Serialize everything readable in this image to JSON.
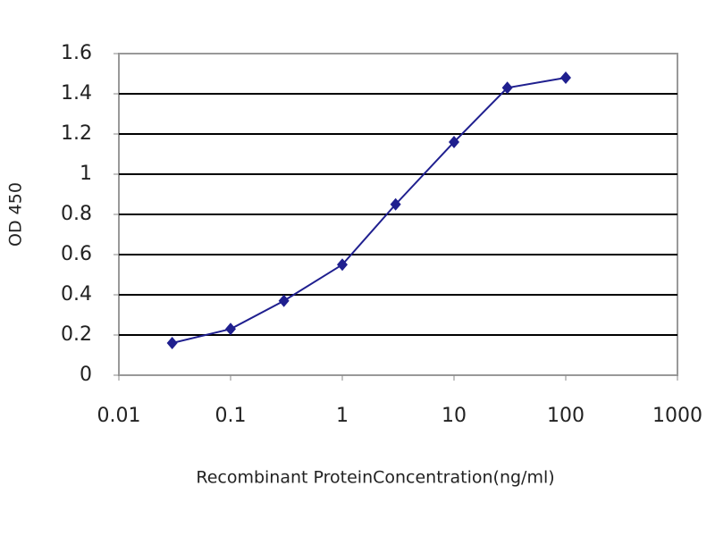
{
  "chart_data": {
    "type": "line",
    "x_label": "Recombinant ProteinConcentration(ng/ml)",
    "y_label": "OD 450",
    "x": [
      0.03,
      0.1,
      0.3,
      1,
      3,
      10,
      30,
      100
    ],
    "series": [
      {
        "name": "OD 450",
        "color": "#1f1f8f",
        "values": [
          0.16,
          0.23,
          0.37,
          0.55,
          0.85,
          1.16,
          1.43,
          1.48
        ]
      }
    ],
    "xscale": "log",
    "xlim": [
      0.01,
      1000
    ],
    "xticks": [
      0.01,
      0.1,
      1,
      10,
      100,
      1000
    ],
    "ylim": [
      0,
      1.6
    ],
    "yticks": [
      0,
      0.2,
      0.4,
      0.6,
      0.8,
      1,
      1.2,
      1.4,
      1.6
    ],
    "grid": true
  }
}
